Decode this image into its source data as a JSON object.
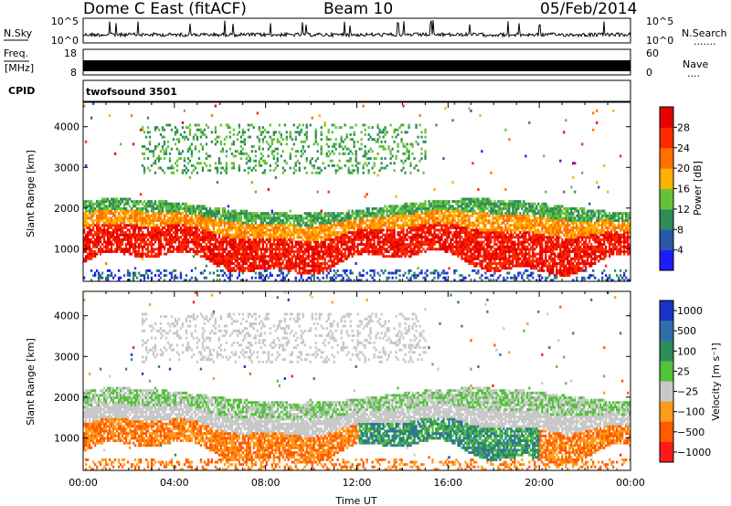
{
  "header": {
    "radar": "Dome C East (fitACF)",
    "beam": "Beam 10",
    "date": "05/Feb/2014"
  },
  "side_labels": {
    "nsky": "N.Sky",
    "freq": "Freq.",
    "mhz": "[MHz]",
    "cpid": "CPID",
    "nsearch": "N.Search",
    "nave": "Nave",
    "dots_search": ".......",
    "dots_nave": "...."
  },
  "cpid_text": "twofsound 3501",
  "chart_data": [
    {
      "type": "line",
      "name": "noise",
      "left_axis_ticks": [
        "10^5",
        "10^0"
      ],
      "right_axis_ticks": [
        "10^5",
        "10^0"
      ],
      "series": [
        {
          "name": "N.Sky"
        },
        {
          "name": "N.Search"
        }
      ]
    },
    {
      "type": "area",
      "name": "freq-nave",
      "left_axis_ticks": [
        18,
        8
      ],
      "right_axis_ticks": [
        60,
        0
      ],
      "ylim_freq_mhz": [
        8,
        18
      ],
      "ylim_nave": [
        0,
        60
      ],
      "series": [
        {
          "name": "Freq."
        },
        {
          "name": "Nave"
        }
      ]
    },
    {
      "type": "heatmap",
      "name": "power",
      "xlabel": "",
      "ylabel": "Slant Range [km]",
      "yticks": [
        1000,
        2000,
        3000,
        4000
      ],
      "ylim": [
        200,
        4600
      ],
      "colorbar_label": "Power [dB]",
      "colorbar_ticks": [
        4,
        8,
        12,
        16,
        20,
        24,
        28
      ],
      "colorbar_range": [
        0,
        32
      ],
      "colors": [
        "#1c1cff",
        "#2a57a8",
        "#2e8c5a",
        "#66c23a",
        "#ffb000",
        "#ff7000",
        "#ff2a00",
        "#e60000"
      ],
      "time_hours": [
        0,
        24
      ]
    },
    {
      "type": "heatmap",
      "name": "velocity",
      "xlabel": "Time UT",
      "xticks": [
        "00:00",
        "04:00",
        "08:00",
        "12:00",
        "16:00",
        "20:00",
        "00:00"
      ],
      "ylabel": "Slant Range [km]",
      "yticks": [
        1000,
        2000,
        3000,
        4000
      ],
      "ylim": [
        200,
        4600
      ],
      "colorbar_label": "Velocity [m s⁻¹]",
      "colorbar_ticks": [
        "1000",
        "500",
        "100",
        "25",
        "−25",
        "−100",
        "−500",
        "−1000"
      ],
      "colors": [
        "#1c33c8",
        "#2f6fa8",
        "#2e8c5a",
        "#52c23a",
        "#c8c8c8",
        "#ff9a1a",
        "#ff5a00",
        "#ff1a1a"
      ],
      "time_hours": [
        0,
        24
      ]
    }
  ]
}
